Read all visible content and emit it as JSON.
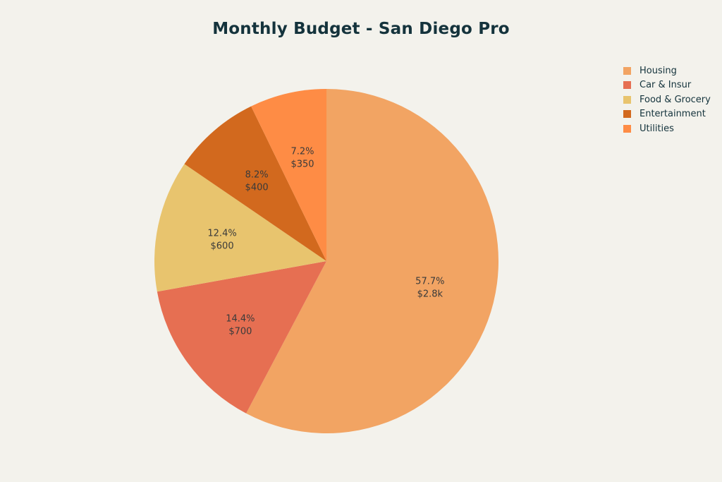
{
  "title": "Monthly Budget - San Diego Pro",
  "chart_data": {
    "type": "pie",
    "title": "Monthly Budget - San Diego Pro",
    "legend_position": "top-right",
    "slices": [
      {
        "label": "Housing",
        "value": 2800,
        "percent_text": "57.7%",
        "value_text": "$2.8k",
        "color": "#f2a463"
      },
      {
        "label": "Car & Insur",
        "value": 700,
        "percent_text": "14.4%",
        "value_text": "$700",
        "color": "#e66f52"
      },
      {
        "label": "Food & Grocery",
        "value": 600,
        "percent_text": "12.4%",
        "value_text": "$600",
        "color": "#e8c46e"
      },
      {
        "label": "Entertainment",
        "value": 400,
        "percent_text": "8.2%",
        "value_text": "$400",
        "color": "#d2691e"
      },
      {
        "label": "Utilities",
        "value": 350,
        "percent_text": "7.2%",
        "value_text": "$350",
        "color": "#fe8c45"
      }
    ]
  }
}
